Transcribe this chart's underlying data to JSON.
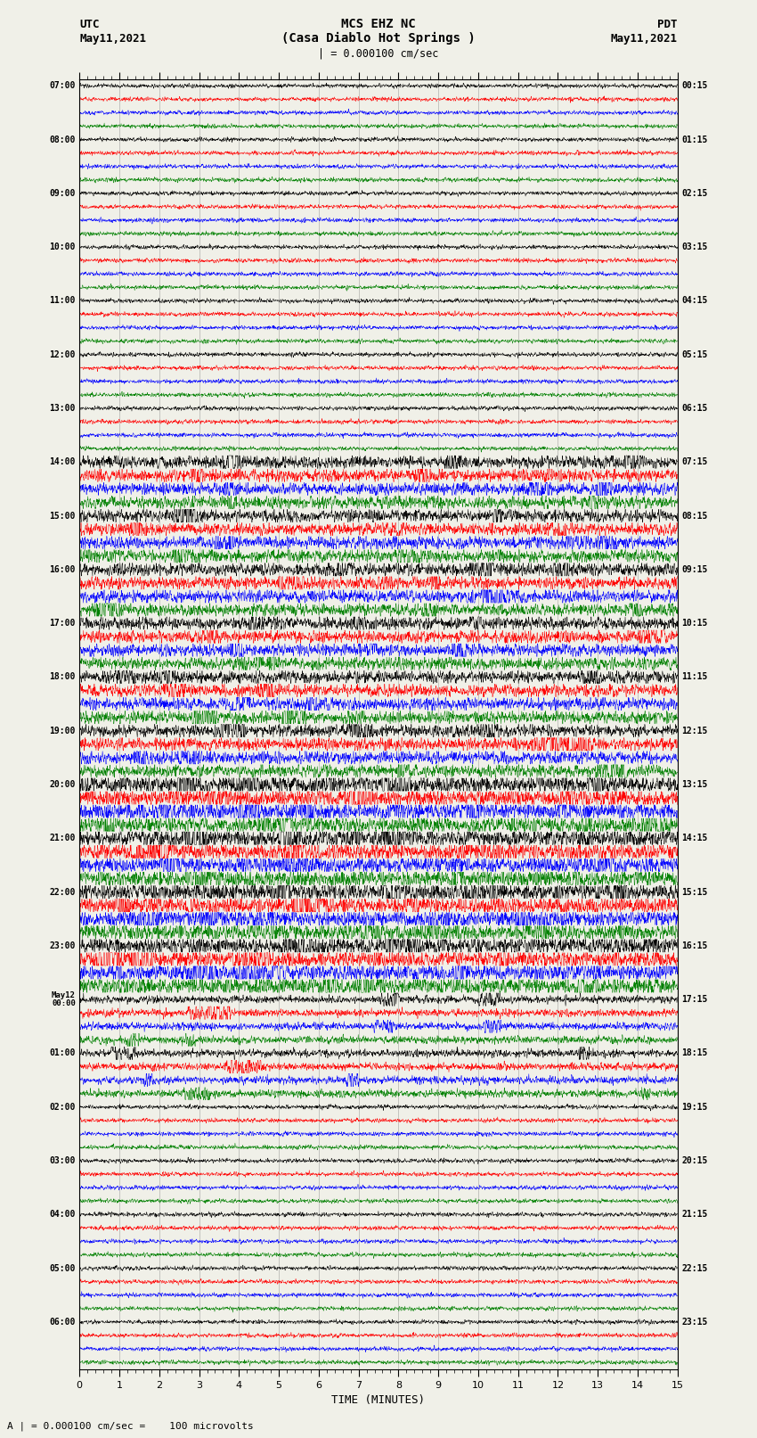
{
  "title_line1": "MCS EHZ NC",
  "title_line2": "(Casa Diablo Hot Springs )",
  "title_line3": "| = 0.000100 cm/sec",
  "left_header1": "UTC",
  "left_header2": "May11,2021",
  "right_header1": "PDT",
  "right_header2": "May11,2021",
  "xlabel": "TIME (MINUTES)",
  "bottom_label": "A | = 0.000100 cm/sec =    100 microvolts",
  "xlim": [
    0,
    15
  ],
  "xticks": [
    0,
    1,
    2,
    3,
    4,
    5,
    6,
    7,
    8,
    9,
    10,
    11,
    12,
    13,
    14,
    15
  ],
  "utc_labels": [
    "07:00",
    "",
    "",
    "",
    "08:00",
    "",
    "",
    "",
    "09:00",
    "",
    "",
    "",
    "10:00",
    "",
    "",
    "",
    "11:00",
    "",
    "",
    "",
    "12:00",
    "",
    "",
    "",
    "13:00",
    "",
    "",
    "",
    "14:00",
    "",
    "",
    "",
    "15:00",
    "",
    "",
    "",
    "16:00",
    "",
    "",
    "",
    "17:00",
    "",
    "",
    "",
    "18:00",
    "",
    "",
    "",
    "19:00",
    "",
    "",
    "",
    "20:00",
    "",
    "",
    "",
    "21:00",
    "",
    "",
    "",
    "22:00",
    "",
    "",
    "",
    "23:00",
    "",
    "",
    "",
    "May12\n00:00",
    "",
    "",
    "",
    "01:00",
    "",
    "",
    "",
    "02:00",
    "",
    "",
    "",
    "03:00",
    "",
    "",
    "",
    "04:00",
    "",
    "",
    "",
    "05:00",
    "",
    "",
    "",
    "06:00",
    "",
    "",
    ""
  ],
  "pdt_labels": [
    "00:15",
    "",
    "",
    "",
    "01:15",
    "",
    "",
    "",
    "02:15",
    "",
    "",
    "",
    "03:15",
    "",
    "",
    "",
    "04:15",
    "",
    "",
    "",
    "05:15",
    "",
    "",
    "",
    "06:15",
    "",
    "",
    "",
    "07:15",
    "",
    "",
    "",
    "08:15",
    "",
    "",
    "",
    "09:15",
    "",
    "",
    "",
    "10:15",
    "",
    "",
    "",
    "11:15",
    "",
    "",
    "",
    "12:15",
    "",
    "",
    "",
    "13:15",
    "",
    "",
    "",
    "14:15",
    "",
    "",
    "",
    "15:15",
    "",
    "",
    "",
    "16:15",
    "",
    "",
    "",
    "17:15",
    "",
    "",
    "",
    "18:15",
    "",
    "",
    "",
    "19:15",
    "",
    "",
    "",
    "20:15",
    "",
    "",
    "",
    "21:15",
    "",
    "",
    "",
    "22:15",
    "",
    "",
    "",
    "23:15",
    "",
    "",
    ""
  ],
  "trace_colors": [
    "black",
    "red",
    "blue",
    "green"
  ],
  "n_rows": 96,
  "background_color": "#f0f0e8",
  "grid_color": "#808080",
  "active_ranges": [
    [
      28,
      72
    ]
  ],
  "very_active_ranges": [
    [
      52,
      68
    ]
  ]
}
